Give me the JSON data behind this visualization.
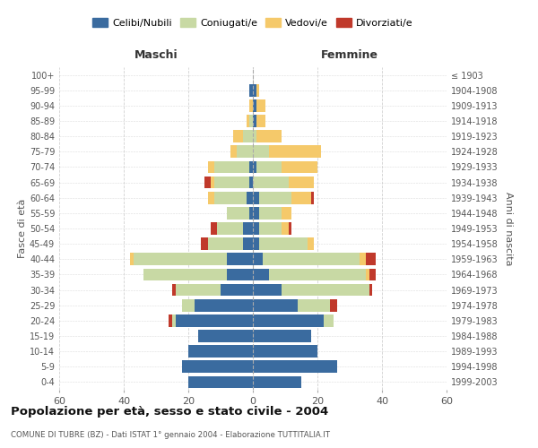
{
  "age_groups": [
    "0-4",
    "5-9",
    "10-14",
    "15-19",
    "20-24",
    "25-29",
    "30-34",
    "35-39",
    "40-44",
    "45-49",
    "50-54",
    "55-59",
    "60-64",
    "65-69",
    "70-74",
    "75-79",
    "80-84",
    "85-89",
    "90-94",
    "95-99",
    "100+"
  ],
  "birth_years": [
    "1999-2003",
    "1994-1998",
    "1989-1993",
    "1984-1988",
    "1979-1983",
    "1974-1978",
    "1969-1973",
    "1964-1968",
    "1959-1963",
    "1954-1958",
    "1949-1953",
    "1944-1948",
    "1939-1943",
    "1934-1938",
    "1929-1933",
    "1924-1928",
    "1919-1923",
    "1914-1918",
    "1909-1913",
    "1904-1908",
    "≤ 1903"
  ],
  "male": {
    "celibi": [
      20,
      22,
      20,
      17,
      24,
      18,
      10,
      8,
      8,
      3,
      3,
      1,
      2,
      1,
      1,
      0,
      0,
      0,
      0,
      1,
      0
    ],
    "coniugati": [
      0,
      0,
      0,
      0,
      1,
      4,
      14,
      26,
      29,
      11,
      8,
      7,
      10,
      11,
      11,
      5,
      3,
      1,
      0,
      0,
      0
    ],
    "vedovi": [
      0,
      0,
      0,
      0,
      0,
      0,
      0,
      0,
      1,
      0,
      0,
      0,
      2,
      1,
      2,
      2,
      3,
      1,
      1,
      0,
      0
    ],
    "divorziati": [
      0,
      0,
      0,
      0,
      1,
      0,
      1,
      0,
      0,
      2,
      2,
      0,
      0,
      2,
      0,
      0,
      0,
      0,
      0,
      0,
      0
    ]
  },
  "female": {
    "nubili": [
      15,
      26,
      20,
      18,
      22,
      14,
      9,
      5,
      3,
      2,
      2,
      2,
      2,
      0,
      1,
      0,
      0,
      1,
      1,
      1,
      0
    ],
    "coniugate": [
      0,
      0,
      0,
      0,
      3,
      10,
      27,
      30,
      30,
      15,
      7,
      7,
      10,
      11,
      8,
      5,
      1,
      0,
      0,
      0,
      0
    ],
    "vedove": [
      0,
      0,
      0,
      0,
      0,
      0,
      0,
      1,
      2,
      2,
      2,
      3,
      6,
      8,
      11,
      16,
      8,
      3,
      3,
      1,
      0
    ],
    "divorziate": [
      0,
      0,
      0,
      0,
      0,
      2,
      1,
      2,
      3,
      0,
      1,
      0,
      1,
      0,
      0,
      0,
      0,
      0,
      0,
      0,
      0
    ]
  },
  "colors": {
    "celibi": "#3a6b9f",
    "coniugati": "#c8d9a4",
    "vedovi": "#f5c96a",
    "divorziati": "#c0392b"
  },
  "xlim": 60,
  "title": "Popolazione per età, sesso e stato civile - 2004",
  "subtitle": "COMUNE DI TUBRE (BZ) - Dati ISTAT 1° gennaio 2004 - Elaborazione TUTTITALIA.IT",
  "xlabel_left": "Maschi",
  "xlabel_right": "Femmine",
  "ylabel_left": "Fasce di età",
  "ylabel_right": "Anni di nascita",
  "legend_labels": [
    "Celibi/Nubili",
    "Coniugati/e",
    "Vedovi/e",
    "Divorziati/e"
  ],
  "background_color": "#ffffff",
  "grid_color": "#cccccc"
}
